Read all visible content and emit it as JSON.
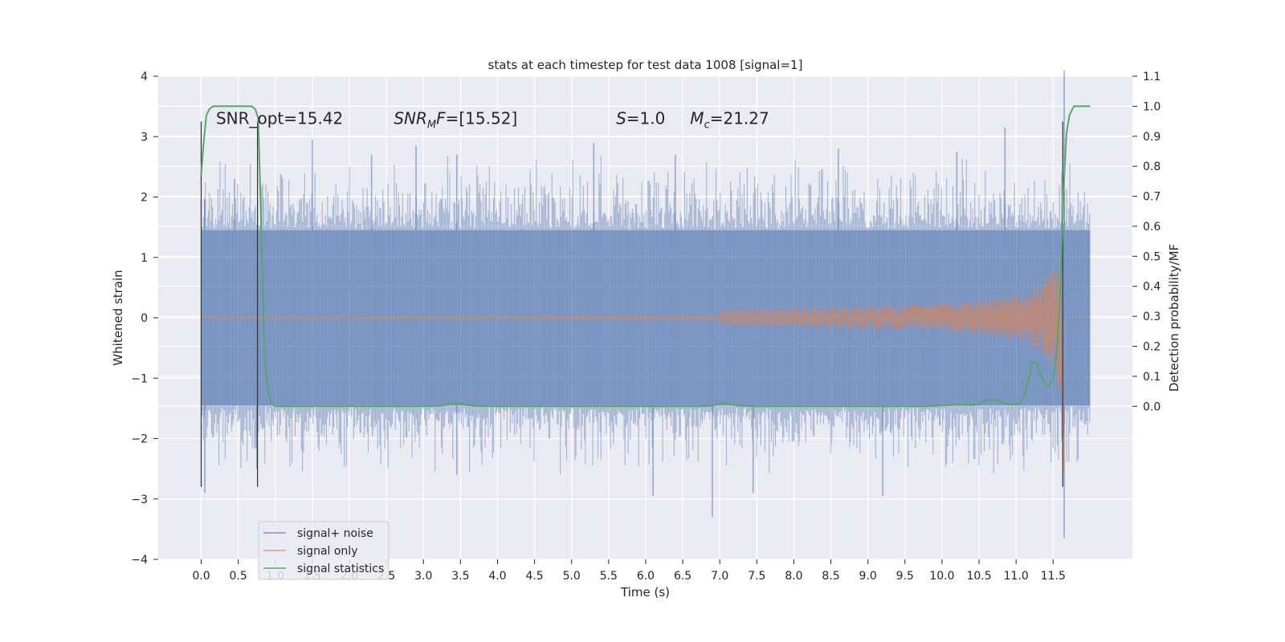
{
  "chart_data": {
    "type": "line",
    "title": "stats at each timestep for test data 1008 [signal=1]",
    "xlabel": "Time (s)",
    "ylabel": "Whitened strain",
    "ylabel_right": "Detection probability/MF",
    "xlim": [
      -0.58,
      12.57
    ],
    "ylim": [
      -4.0,
      4.0
    ],
    "ylim_right": [
      -0.51,
      1.1
    ],
    "x_ticks": [
      0.0,
      0.5,
      1.0,
      1.5,
      2.0,
      2.5,
      3.0,
      3.5,
      4.0,
      4.5,
      5.0,
      5.5,
      6.0,
      6.5,
      7.0,
      7.5,
      8.0,
      8.5,
      9.0,
      9.5,
      10.0,
      10.5,
      11.0,
      11.5
    ],
    "x_tick_labels": [
      "0.0",
      "0.5",
      "1.0",
      "1.5",
      "2.0",
      "2.5",
      "3.0",
      "3.5",
      "4.0",
      "4.5",
      "5.0",
      "5.5",
      "6.0",
      "6.5",
      "7.0",
      "7.5",
      "8.0",
      "8.5",
      "9.0",
      "9.5",
      "10.0",
      "10.5",
      "11.0",
      "11.5"
    ],
    "y_ticks": [
      -4,
      -3,
      -2,
      -1,
      0,
      1,
      2,
      3,
      4
    ],
    "y_tick_labels": [
      "−4",
      "−3",
      "−2",
      "−1",
      "0",
      "1",
      "2",
      "3",
      "4"
    ],
    "y_ticks_right": [
      0.0,
      0.1,
      0.2,
      0.3,
      0.4,
      0.5,
      0.6,
      0.7,
      0.8,
      0.9,
      1.0,
      1.1
    ],
    "y_tick_labels_right": [
      "0.0",
      "0.1",
      "0.2",
      "0.3",
      "0.4",
      "0.5",
      "0.6",
      "0.7",
      "0.8",
      "0.9",
      "1.0",
      "1.1"
    ],
    "grid": true,
    "background": "#eaeaf2",
    "legend_position": "lower-left",
    "annotations": [
      {
        "text": "SNR_opt=15.42",
        "x": 0.2,
        "y": 3.3
      },
      {
        "text": "SNRMF=[15.52]",
        "x": 2.6,
        "y": 3.3
      },
      {
        "text": "S=1.0",
        "x": 5.6,
        "y": 3.3
      },
      {
        "text": "Mc=21.27",
        "x": 6.6,
        "y": 3.3
      }
    ],
    "noise_time_range": [
      0.0,
      12.0
    ],
    "noise_band": [
      -1.45,
      1.45
    ],
    "noise_peaks": [
      {
        "x": 0.05,
        "y": 1.95
      },
      {
        "x": 0.45,
        "y": 2.3
      },
      {
        "x": 1.5,
        "y": 2.95
      },
      {
        "x": 2.3,
        "y": 2.7
      },
      {
        "x": 2.9,
        "y": 2.85
      },
      {
        "x": 3.45,
        "y": 2.7
      },
      {
        "x": 5.3,
        "y": 2.9
      },
      {
        "x": 6.4,
        "y": 2.7
      },
      {
        "x": 8.6,
        "y": 2.8
      },
      {
        "x": 10.2,
        "y": 2.75
      },
      {
        "x": 10.85,
        "y": 3.15
      },
      {
        "x": 11.65,
        "y": 4.1
      },
      {
        "x": 0.05,
        "y": -2.9
      },
      {
        "x": 0.75,
        "y": -2.5
      },
      {
        "x": 3.45,
        "y": -2.6
      },
      {
        "x": 6.1,
        "y": -2.95
      },
      {
        "x": 6.9,
        "y": -3.3
      },
      {
        "x": 7.45,
        "y": -2.9
      },
      {
        "x": 9.2,
        "y": -2.95
      },
      {
        "x": 11.65,
        "y": -3.65
      }
    ],
    "chirp": {
      "merger_time": 11.65,
      "start_time": 7.0,
      "peak_amplitude": 3.05
    },
    "vlines": [
      {
        "x": 0.0,
        "ymin": -2.8,
        "ymax": 3.25
      },
      {
        "x": 0.76,
        "ymin": -2.8,
        "ymax": 3.25
      },
      {
        "x": 11.63,
        "ymin": -2.8,
        "ymax": 3.25
      }
    ],
    "statistics": {
      "x": [
        0.0,
        0.03,
        0.07,
        0.11,
        0.16,
        0.22,
        0.3,
        0.4,
        0.5,
        0.6,
        0.68,
        0.73,
        0.77,
        0.8,
        0.83,
        0.86,
        0.9,
        0.95,
        1.0,
        1.5,
        2.0,
        2.5,
        3.0,
        3.25,
        3.38,
        3.45,
        3.5,
        3.58,
        3.7,
        3.9,
        4.5,
        5.0,
        6.0,
        6.7,
        6.9,
        7.0,
        7.05,
        7.12,
        7.25,
        7.5,
        8.0,
        9.0,
        9.8,
        10.0,
        10.2,
        10.4,
        10.5,
        10.55,
        10.65,
        10.75,
        10.85,
        10.95,
        11.05,
        11.12,
        11.18,
        11.22,
        11.27,
        11.32,
        11.38,
        11.44,
        11.5,
        11.55,
        11.6,
        11.64,
        11.68,
        11.72,
        11.78,
        11.84,
        11.92,
        12.0
      ],
      "y": [
        0.77,
        0.87,
        0.97,
        0.99,
        1.0,
        1.0,
        1.0,
        1.0,
        1.0,
        1.0,
        1.0,
        0.99,
        0.96,
        0.7,
        0.4,
        0.15,
        0.05,
        0.01,
        0.0,
        0.0,
        0.0,
        0.0,
        0.0,
        0.002,
        0.008,
        0.011,
        0.01,
        0.004,
        0.001,
        0.0,
        0.0,
        0.0,
        0.0,
        0.0,
        0.002,
        0.008,
        0.011,
        0.008,
        0.002,
        0.0,
        0.0,
        0.0,
        0.0,
        0.003,
        0.005,
        0.004,
        0.008,
        0.015,
        0.023,
        0.02,
        0.01,
        0.005,
        0.01,
        0.04,
        0.1,
        0.148,
        0.147,
        0.11,
        0.08,
        0.07,
        0.09,
        0.18,
        0.4,
        0.72,
        0.91,
        0.97,
        1.0,
        1.0,
        1.0,
        1.0
      ]
    },
    "series": [
      {
        "name": "signal+ noise",
        "color": "#4c72b0"
      },
      {
        "name": "signal only",
        "color": "#dd8452"
      },
      {
        "name": "signal statistics",
        "color": "#55a868"
      }
    ]
  }
}
